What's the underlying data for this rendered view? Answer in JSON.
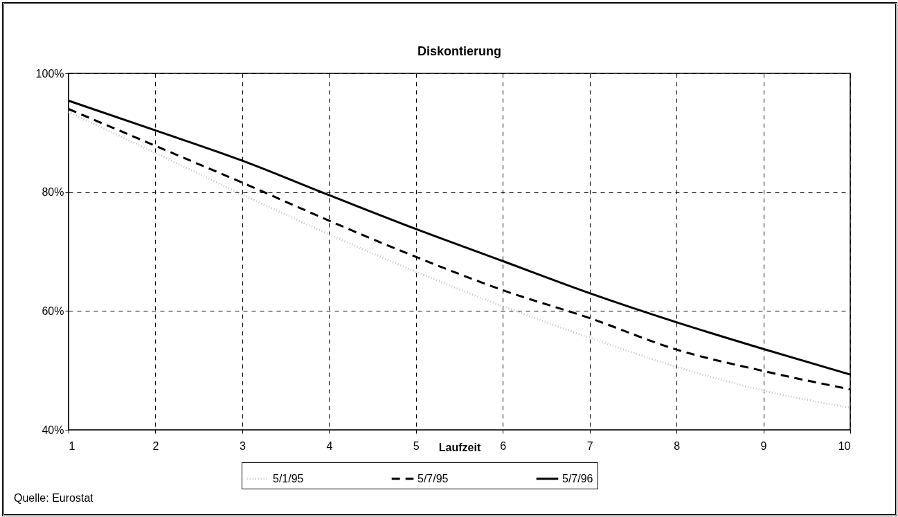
{
  "chart_data": {
    "type": "line",
    "title": "Diskontierung",
    "xlabel": "Laufzeit",
    "annotations": [
      "Quelle: Eurostat"
    ],
    "x": [
      1,
      2,
      3,
      4,
      5,
      6,
      7,
      8,
      9,
      10
    ],
    "series": [
      {
        "name": "5/1/95",
        "color": "#c0c0c0",
        "line_style": "dotted",
        "values": [
          93.5,
          86.6,
          79.6,
          72.9,
          66.6,
          60.8,
          55.5,
          50.6,
          46.6,
          43.7
        ]
      },
      {
        "name": "5/7/95",
        "color": "#000000",
        "line_style": "dashed",
        "values": [
          94.0,
          87.8,
          81.6,
          75.2,
          69.1,
          63.5,
          58.8,
          53.5,
          49.9,
          46.8
        ]
      },
      {
        "name": "5/7/96",
        "color": "#000000",
        "line_style": "solid",
        "values": [
          95.4,
          90.4,
          85.3,
          79.5,
          73.8,
          68.4,
          63.0,
          58.1,
          53.6,
          49.3
        ]
      }
    ],
    "xlim": [
      1,
      10
    ],
    "xticks": [
      1,
      2,
      3,
      4,
      5,
      6,
      7,
      8,
      9,
      10
    ],
    "ylim": [
      40,
      100
    ],
    "yticks": [
      {
        "value": 40,
        "label": "40%"
      },
      {
        "value": 60,
        "label": "60%"
      },
      {
        "value": 80,
        "label": "80%"
      },
      {
        "value": 100,
        "label": "100%"
      }
    ],
    "grid": true,
    "legend": "bottom",
    "marker": "none"
  }
}
